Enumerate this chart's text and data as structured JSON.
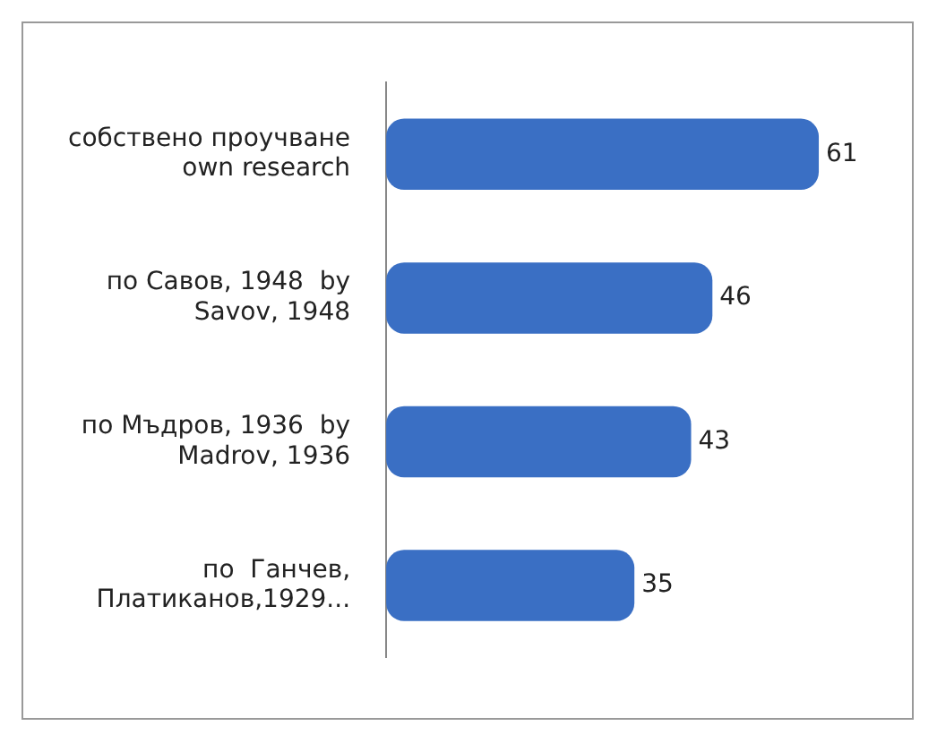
{
  "chart_data": {
    "type": "bar",
    "orientation": "horizontal",
    "categories": [
      "собствено проучване own research",
      "по Савов, 1948  by Savov, 1948",
      "по Мъдров, 1936  by Madrov, 1936",
      "по  Ганчев, Платиканов,1929..."
    ],
    "values": [
      61,
      46,
      43,
      35
    ],
    "color": "#3a6fc4",
    "data_labels": true
  }
}
